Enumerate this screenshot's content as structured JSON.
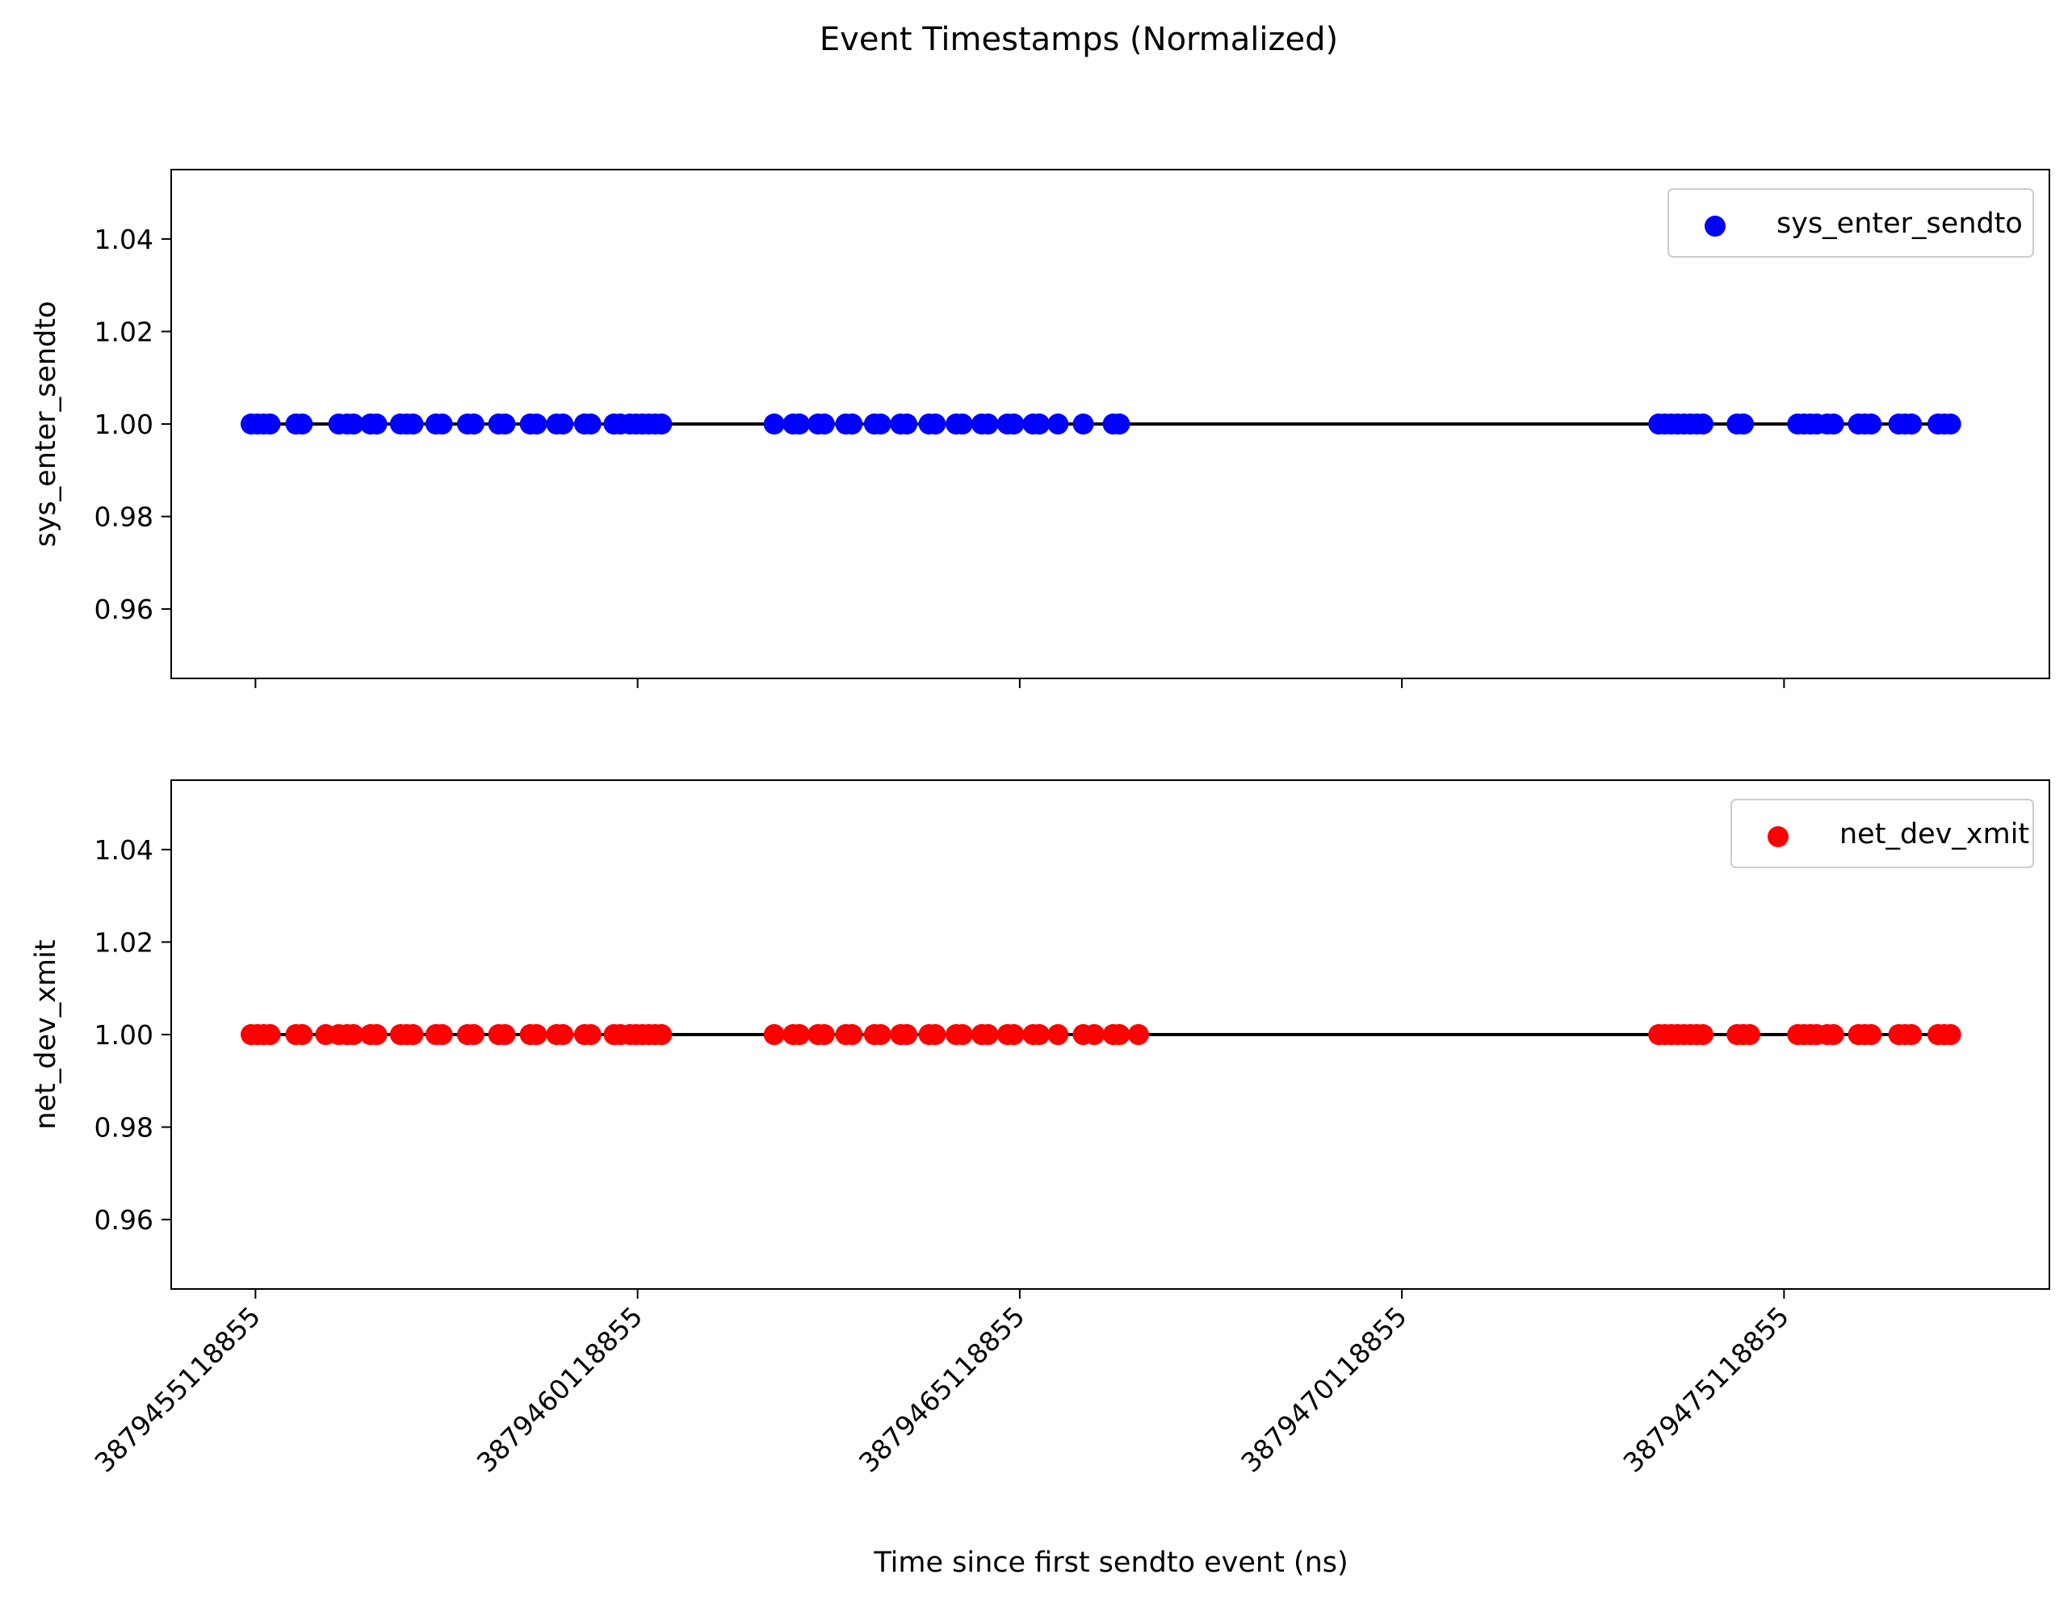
{
  "chart_data": {
    "type": "scatter",
    "title": "Event Timestamps (Normalized)",
    "xlabel": "Time since first sendto event (ns)",
    "x_ticks": [
      3879455118855,
      3879460118855,
      3879465118855,
      3879470118855,
      3879475118855
    ],
    "x_tick_labels": [
      "3879455118855",
      "3879460118855",
      "3879465118855",
      "3879470118855",
      "3879475118855"
    ],
    "xlim": [
      3879454016000,
      3879478591000
    ],
    "shared_x": true,
    "panels": [
      {
        "ylabel": "sys_enter_sendto",
        "ylim": [
          0.945,
          1.055
        ],
        "y_ticks": [
          0.96,
          0.98,
          1.0,
          1.02,
          1.04
        ],
        "y_tick_labels": [
          "0.96",
          "0.98",
          "1.00",
          "1.02",
          "1.04"
        ],
        "legend_position": "upper right",
        "series": [
          {
            "name": "sys_enter_sendto",
            "color": "#0000ff",
            "marker": "circle",
            "y_value": 1.0,
            "x": [
              3879455062000,
              3879455145000,
              3879455227000,
              3879455310000,
              3879455648000,
              3879455731000,
              3879456209000,
              3879456319000,
              3879456402000,
              3879456623000,
              3879456705000,
              3879457015000,
              3879457098000,
              3879457180000,
              3879457480000,
              3879457562000,
              3879457893000,
              3879457976000,
              3879458301000,
              3879458384000,
              3879458714000,
              3879458797000,
              3879459059000,
              3879459142000,
              3879459424000,
              3879459507000,
              3879459810000,
              3879459893000,
              3879460019000,
              3879460102000,
              3879460185000,
              3879460267000,
              3879460350000,
              3879460433000,
              3879461906000,
              3879462154000,
              3879462237000,
              3879462479000,
              3879462562000,
              3879462843000,
              3879462926000,
              3879463217000,
              3879463300000,
              3879463559000,
              3879463642000,
              3879463932000,
              3879464015000,
              3879464286000,
              3879464369000,
              3879464622000,
              3879464705000,
              3879464958000,
              3879465041000,
              3879465293000,
              3879465376000,
              3879465619000,
              3879465950000,
              3879466341000,
              3879466424000,
              3879473480000,
              3879473562000,
              3879473645000,
              3879473727000,
              3879473810000,
              3879473893000,
              3879473975000,
              3879474058000,
              3879474505000,
              3879474588000,
              3879475298000,
              3879475381000,
              3879475463000,
              3879475546000,
              3879475684000,
              3879475767000,
              3879476093000,
              3879476176000,
              3879476259000,
              3879476621000,
              3879476704000,
              3879476787000,
              3879477133000,
              3879477216000,
              3879477299000
            ]
          }
        ],
        "baseline": {
          "y": 1.0,
          "x_range": [
            3879455040000,
            3879477410000
          ],
          "color": "#000000"
        }
      },
      {
        "ylabel": "net_dev_xmit",
        "ylim": [
          0.945,
          1.055
        ],
        "y_ticks": [
          0.96,
          0.98,
          1.0,
          1.02,
          1.04
        ],
        "y_tick_labels": [
          "0.96",
          "0.98",
          "1.00",
          "1.02",
          "1.04"
        ],
        "legend_position": "upper right",
        "series": [
          {
            "name": "net_dev_xmit",
            "color": "#ff0000",
            "marker": "circle",
            "y_value": 1.0,
            "x": [
              3879455062000,
              3879455145000,
              3879455227000,
              3879455310000,
              3879455648000,
              3879455731000,
              3879456039000,
              3879456209000,
              3879456319000,
              3879456402000,
              3879456623000,
              3879456705000,
              3879457015000,
              3879457098000,
              3879457180000,
              3879457480000,
              3879457562000,
              3879457893000,
              3879457976000,
              3879458301000,
              3879458384000,
              3879458714000,
              3879458797000,
              3879459059000,
              3879459142000,
              3879459424000,
              3879459507000,
              3879459810000,
              3879459893000,
              3879460019000,
              3879460102000,
              3879460185000,
              3879460267000,
              3879460350000,
              3879460433000,
              3879461906000,
              3879462154000,
              3879462237000,
              3879462479000,
              3879462562000,
              3879462843000,
              3879462926000,
              3879463217000,
              3879463300000,
              3879463559000,
              3879463642000,
              3879463932000,
              3879464015000,
              3879464286000,
              3879464369000,
              3879464622000,
              3879464705000,
              3879464958000,
              3879465041000,
              3879465293000,
              3879465376000,
              3879465619000,
              3879465950000,
              3879466093000,
              3879466341000,
              3879466424000,
              3879466672000,
              3879473480000,
              3879473562000,
              3879473645000,
              3879473727000,
              3879473810000,
              3879473893000,
              3879473975000,
              3879474058000,
              3879474505000,
              3879474588000,
              3879474671000,
              3879475298000,
              3879475381000,
              3879475463000,
              3879475546000,
              3879475684000,
              3879475767000,
              3879476093000,
              3879476176000,
              3879476259000,
              3879476621000,
              3879476704000,
              3879476787000,
              3879477133000,
              3879477216000,
              3879477299000
            ]
          }
        ],
        "baseline": {
          "y": 1.0,
          "x_range": [
            3879455040000,
            3879477410000
          ],
          "color": "#000000"
        }
      }
    ],
    "grid": false,
    "colors": {
      "axes": "#000000",
      "legend_border": "#cccccc",
      "baseline": "#000000"
    }
  }
}
